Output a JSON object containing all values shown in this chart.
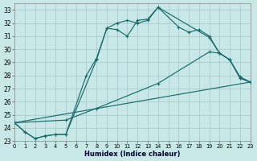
{
  "xlabel": "Humidex (Indice chaleur)",
  "bg_color": "#c8e8e8",
  "grid_color": "#aacccc",
  "line_color": "#1a6b6b",
  "xlim": [
    0,
    23
  ],
  "ylim": [
    23,
    33.5
  ],
  "yticks": [
    23,
    24,
    25,
    26,
    27,
    28,
    29,
    30,
    31,
    32,
    33
  ],
  "xticks": [
    0,
    1,
    2,
    3,
    4,
    5,
    6,
    7,
    8,
    9,
    10,
    11,
    12,
    13,
    14,
    15,
    16,
    17,
    18,
    19,
    20,
    21,
    22,
    23
  ],
  "line1": {
    "x": [
      0,
      1,
      2,
      3,
      4,
      5,
      7,
      8,
      9,
      10,
      11,
      12,
      13,
      14,
      16,
      17,
      18,
      19,
      20,
      21,
      22,
      23
    ],
    "y": [
      24.4,
      23.7,
      23.2,
      23.4,
      23.5,
      23.5,
      28.0,
      29.3,
      31.6,
      31.5,
      31.0,
      32.2,
      32.3,
      33.2,
      31.7,
      31.3,
      31.5,
      31.0,
      29.7,
      29.2,
      27.8,
      27.5
    ]
  },
  "line2": {
    "x": [
      0,
      1,
      2,
      3,
      4,
      5,
      8,
      9,
      10,
      11,
      12,
      13,
      14,
      19,
      20,
      21,
      22,
      23
    ],
    "y": [
      24.4,
      23.7,
      23.2,
      23.4,
      23.5,
      23.5,
      29.2,
      31.6,
      32.0,
      32.2,
      32.0,
      32.2,
      33.2,
      30.9,
      29.7,
      29.2,
      27.8,
      27.5
    ]
  },
  "line3": {
    "x": [
      0,
      5,
      8,
      14,
      19,
      20,
      21,
      22,
      23
    ],
    "y": [
      24.4,
      24.6,
      25.5,
      27.4,
      29.8,
      29.7,
      29.2,
      27.9,
      27.5
    ]
  },
  "line4": {
    "x": [
      0,
      23
    ],
    "y": [
      24.4,
      27.5
    ]
  }
}
